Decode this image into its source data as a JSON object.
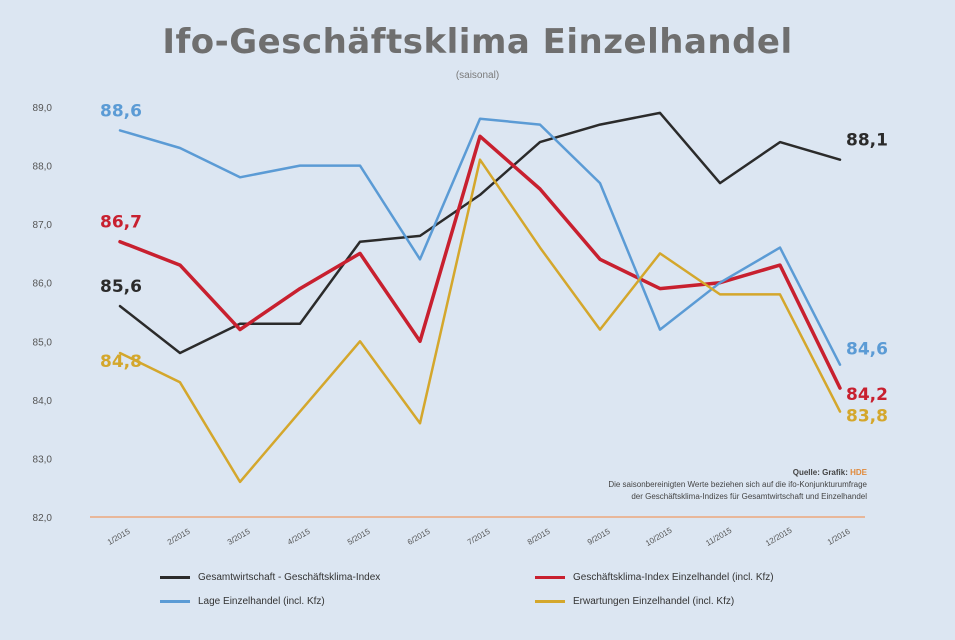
{
  "chart_data": {
    "type": "line",
    "title": "Ifo-Geschäftsklima Einzelhandel",
    "subtitle": "(saisonal)",
    "categories": [
      "1/2015",
      "2/2015",
      "3/2015",
      "4/2015",
      "5/2015",
      "6/2015",
      "7/2015",
      "8/2015",
      "9/2015",
      "10/2015",
      "11/2015",
      "12/2015",
      "1/2016"
    ],
    "ylim": [
      82.0,
      89.0
    ],
    "yticks": [
      82.0,
      83.0,
      84.0,
      85.0,
      86.0,
      87.0,
      88.0,
      89.0
    ],
    "ytick_labels": [
      "82,0",
      "83,0",
      "84,0",
      "85,0",
      "86,0",
      "87,0",
      "88,0",
      "89,0"
    ],
    "grid": false,
    "legend_position": "bottom",
    "series": [
      {
        "name": "Gesamtwirtschaft - Geschäftsklima-Index",
        "color": "#2b2b2b",
        "values": [
          85.6,
          84.8,
          85.3,
          85.3,
          86.7,
          86.8,
          87.5,
          88.4,
          88.7,
          88.9,
          87.7,
          88.4,
          88.1
        ],
        "start_label": "85,6",
        "end_label": "88,1"
      },
      {
        "name": "Geschäftsklima-Index Einzelhandel (incl. Kfz)",
        "color": "#c8202f",
        "values": [
          86.7,
          86.3,
          85.2,
          85.9,
          86.5,
          85.0,
          88.5,
          87.6,
          86.4,
          85.9,
          86.0,
          86.3,
          84.2
        ],
        "start_label": "86,7",
        "end_label": "84,2"
      },
      {
        "name": "Lage Einzelhandel (incl. Kfz)",
        "color": "#5b9bd5",
        "values": [
          88.6,
          88.3,
          87.8,
          88.0,
          88.0,
          86.4,
          88.8,
          88.7,
          87.7,
          85.2,
          86.0,
          86.6,
          84.6
        ],
        "start_label": "88,6",
        "end_label": "84,6"
      },
      {
        "name": "Erwartungen Einzelhandel (incl. Kfz)",
        "color": "#d4a72c",
        "values": [
          84.8,
          84.3,
          82.6,
          83.8,
          85.0,
          83.6,
          88.1,
          86.6,
          85.2,
          86.5,
          85.8,
          85.8,
          83.8
        ],
        "start_label": "84,8",
        "end_label": "83,8"
      }
    ],
    "source_label": "Quelle: Grafik:",
    "source_text": "Grafik",
    "source_highlight": "HDE",
    "source_note_1": "Die saisonbereinigten Werte beziehen sich auf die ifo-Konjunkturumfrage",
    "source_note_2": "der Geschäftsklima-Indizes für Gesamtwirtschaft und Einzelhandel"
  }
}
